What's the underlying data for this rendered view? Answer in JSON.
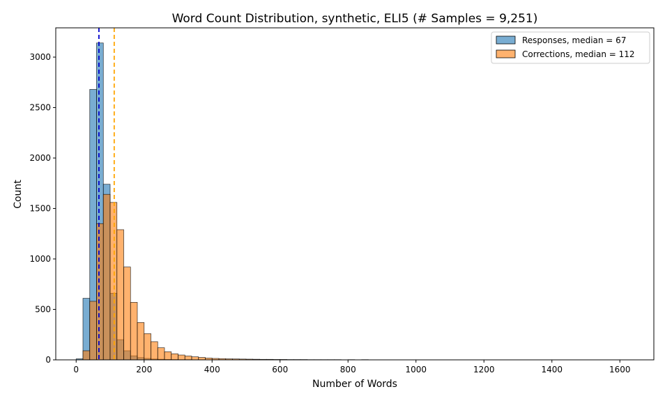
{
  "chart_data": {
    "type": "bar",
    "title": "Word Count Distribution, synthetic, ELI5 (# Samples = 9,251)",
    "xlabel": "Number of Words",
    "ylabel": "Count",
    "xlim": [
      -60,
      1700
    ],
    "ylim": [
      0,
      3290
    ],
    "xticks": [
      0,
      200,
      400,
      600,
      800,
      1000,
      1200,
      1400,
      1600
    ],
    "yticks": [
      0,
      500,
      1000,
      1500,
      2000,
      2500,
      3000
    ],
    "bin_start": 0,
    "bin_width": 20,
    "legend_position": "top-right",
    "grid": false,
    "series": [
      {
        "name": "Responses, median = 67",
        "color": "#1f77b4",
        "values": [
          10,
          610,
          2680,
          3140,
          1740,
          660,
          200,
          90,
          40,
          22,
          14,
          8,
          6,
          4,
          3,
          2,
          2,
          1,
          1,
          1,
          1,
          0,
          0,
          0,
          0,
          0,
          0,
          0,
          0,
          0,
          0,
          0,
          0,
          0,
          0,
          0,
          0,
          0,
          0,
          0,
          0,
          0,
          0,
          0,
          0,
          0,
          0,
          0,
          0,
          0,
          0,
          0,
          0,
          0,
          0,
          0,
          0,
          0,
          0,
          0,
          0,
          0,
          0,
          0,
          0,
          0,
          0,
          0,
          0,
          0,
          0,
          0,
          0,
          0,
          0,
          0,
          0,
          0,
          0,
          0,
          0
        ]
      },
      {
        "name": "Corrections, median = 112",
        "color": "#ff7f0e",
        "values": [
          0,
          90,
          580,
          1350,
          1640,
          1560,
          1290,
          920,
          570,
          370,
          260,
          180,
          120,
          80,
          60,
          48,
          38,
          30,
          24,
          18,
          14,
          12,
          10,
          9,
          8,
          7,
          6,
          5,
          5,
          4,
          4,
          3,
          3,
          3,
          2,
          2,
          2,
          2,
          2,
          1,
          2,
          1,
          2,
          1,
          1,
          1,
          1,
          1,
          1,
          1,
          1,
          1,
          1,
          1,
          1,
          1,
          1,
          1,
          1,
          1,
          1,
          1,
          1,
          1,
          1,
          1,
          1,
          1,
          1,
          1,
          1,
          1,
          1,
          1,
          1,
          1,
          1,
          1,
          1,
          1,
          1
        ]
      }
    ],
    "medians": [
      {
        "value": 67,
        "color": "#0000cc"
      },
      {
        "value": 112,
        "color": "#ffa500"
      }
    ]
  }
}
